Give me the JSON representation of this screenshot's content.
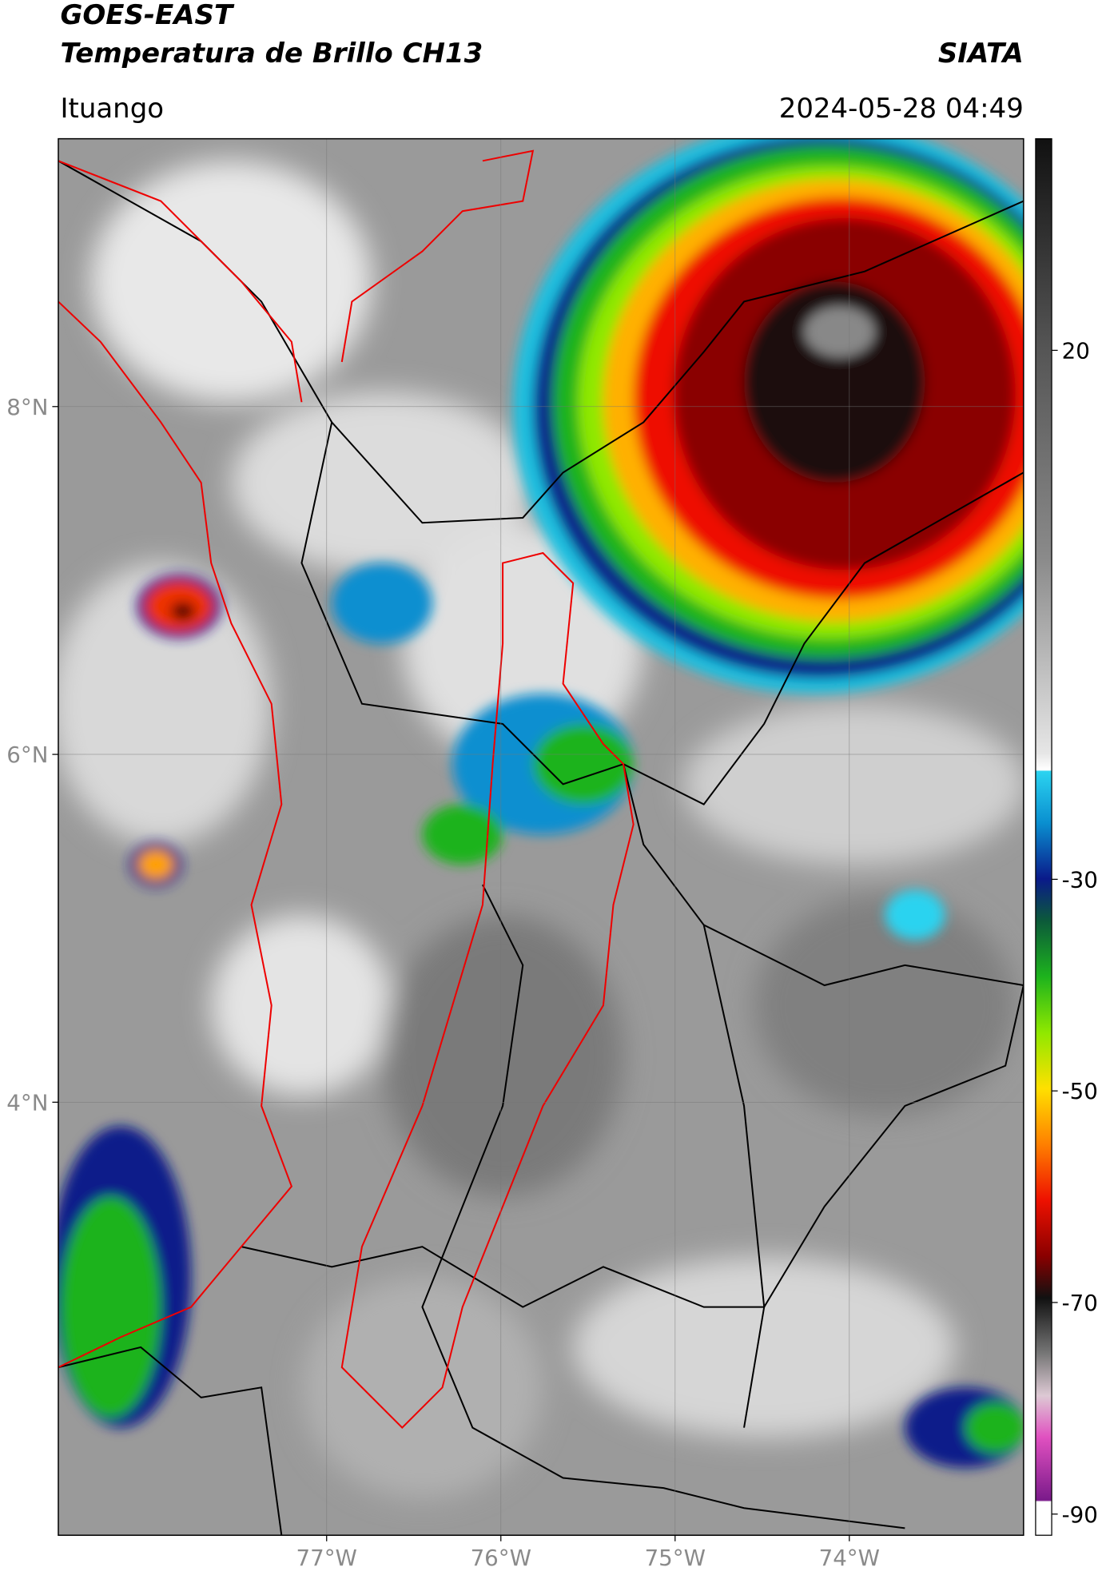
{
  "header": {
    "title": "GOES-EAST",
    "subtitle": "Temperatura de Brillo CH13",
    "agency": "SIATA",
    "location": "Ituango",
    "timestamp": "2024-05-28 04:49"
  },
  "map": {
    "lon_range": [
      -78.54,
      -73.0
    ],
    "lat_range": [
      1.51,
      9.54
    ],
    "lon_ticks": [
      {
        "value": -77,
        "label": "77°W"
      },
      {
        "value": -76,
        "label": "76°W"
      },
      {
        "value": -75,
        "label": "75°W"
      },
      {
        "value": -74,
        "label": "74°W"
      }
    ],
    "lat_ticks": [
      {
        "value": 8,
        "label": "8°N"
      },
      {
        "value": 6,
        "label": "6°N"
      },
      {
        "value": 4,
        "label": "4°N"
      }
    ],
    "grid": true
  },
  "colorbar": {
    "range": [
      -92,
      40
    ],
    "ticks": [
      20,
      -30,
      -50,
      -70,
      -90
    ]
  }
}
